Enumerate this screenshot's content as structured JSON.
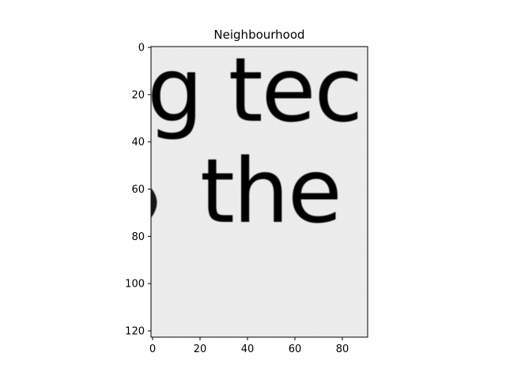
{
  "figure": {
    "title": "Neighbourhood"
  },
  "image_panel": {
    "content": "grayscale close-up of printed serif text",
    "visible_text": {
      "line1": "g tec",
      "line2": "the"
    },
    "colors": {
      "paper": "#eeeeee",
      "ink": "#161616"
    }
  },
  "axes": {
    "x_range": [
      0,
      91
    ],
    "y_range": [
      0,
      123
    ],
    "y_inverted": true,
    "x_ticks": [
      "0",
      "20",
      "40",
      "60",
      "80"
    ],
    "y_ticks": [
      "0",
      "20",
      "40",
      "60",
      "80",
      "100",
      "120"
    ],
    "grid": false
  }
}
